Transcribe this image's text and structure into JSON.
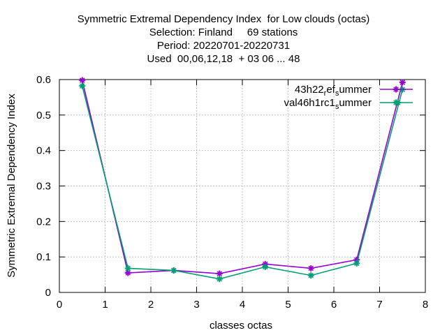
{
  "chart_data": {
    "type": "line",
    "title_lines": [
      "Symmetric Extremal Dependency Index  for Low clouds (octas)",
      "Selection: Finland     69 stations",
      "Period: 20220701-20220731",
      "Used  00,06,12,18  + 03 06 ... 48"
    ],
    "xlabel": "classes octas",
    "ylabel": "Symmetric Extremal Dependency Index",
    "xlim": [
      0,
      8
    ],
    "ylim": [
      0,
      0.6
    ],
    "xticks": [
      "0",
      "1",
      "2",
      "3",
      "4",
      "5",
      "6",
      "7",
      "8"
    ],
    "yticks": [
      "0",
      "0.1",
      "0.2",
      "0.3",
      "0.4",
      "0.5",
      "0.6"
    ],
    "grid": true,
    "legend_position": "top-right",
    "series": [
      {
        "name": "43h22_ref_summer",
        "legend": {
          "a": "43h22",
          "sub1": "r",
          "b": "ef",
          "sub2": "s",
          "c": "ummer"
        },
        "color": "#9400d3",
        "marker": "star",
        "x": [
          0.5,
          1.5,
          2.5,
          3.5,
          4.5,
          5.5,
          6.5,
          7.5
        ],
        "y": [
          0.598,
          0.055,
          0.062,
          0.053,
          0.08,
          0.068,
          0.092,
          0.592
        ]
      },
      {
        "name": "val46h1rc1_summer",
        "legend": {
          "a": "val46h1rc1",
          "sub1": "",
          "b": "",
          "sub2": "s",
          "c": "ummer"
        },
        "color": "#009e73",
        "marker": "star",
        "x": [
          0.5,
          1.5,
          2.5,
          3.5,
          4.5,
          5.5,
          6.5,
          7.5
        ],
        "y": [
          0.582,
          0.068,
          0.062,
          0.038,
          0.072,
          0.048,
          0.082,
          0.572
        ]
      }
    ],
    "extra_points": [
      {
        "series": 1,
        "x": 7.4,
        "y": 0.535
      }
    ]
  }
}
